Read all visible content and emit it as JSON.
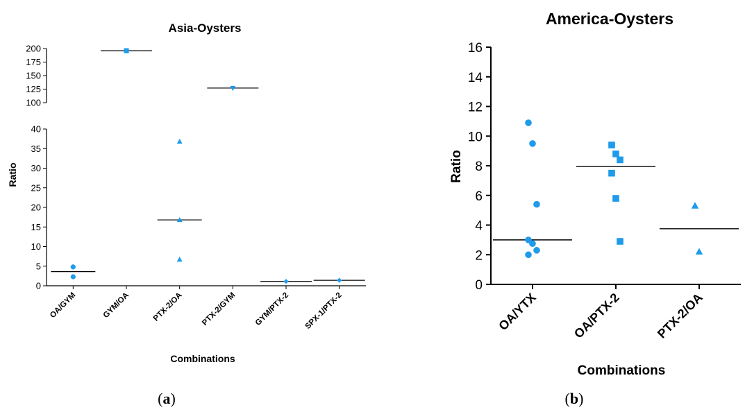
{
  "colors": {
    "marker": "#1e9bea",
    "axis": "#000000",
    "median": "#000000"
  },
  "chart_data": [
    {
      "type": "scatter",
      "title": "Asia-Oysters",
      "xlabel": "Combinations",
      "ylabel": "Ratio",
      "caption": "a",
      "categories": [
        "OA/GYM",
        "GYM/OA",
        "PTX-2/OA",
        "PTX-2/GYM",
        "GYM/PTX-2",
        "SPX-1/PTX-2"
      ],
      "broken_axis": true,
      "ylim_lower": [
        0,
        40
      ],
      "ylim_upper": [
        100,
        200
      ],
      "yticks_lower": [
        "0",
        "5",
        "10",
        "15",
        "20",
        "25",
        "30",
        "35",
        "40"
      ],
      "yticks_upper": [
        "100",
        "125",
        "150",
        "175",
        "200"
      ],
      "series": [
        {
          "category": "OA/GYM",
          "marker": "circle",
          "values": [
            4.8,
            2.3
          ],
          "median": 3.6
        },
        {
          "category": "GYM/OA",
          "marker": "square",
          "values": [
            196
          ],
          "median": 196
        },
        {
          "category": "PTX-2/OA",
          "marker": "triangle-up",
          "values": [
            36.8,
            16.8,
            6.7
          ],
          "median": 16.8
        },
        {
          "category": "PTX-2/GYM",
          "marker": "triangle-down",
          "values": [
            127
          ],
          "median": 127
        },
        {
          "category": "GYM/PTX-2",
          "marker": "diamond",
          "values": [
            1.1
          ],
          "median": 1.1
        },
        {
          "category": "SPX-1/PTX-2",
          "marker": "diamond",
          "values": [
            1.4
          ],
          "median": 1.4
        }
      ]
    },
    {
      "type": "scatter",
      "title": "America-Oysters",
      "xlabel": "Combinations",
      "ylabel": "Ratio",
      "caption": "b",
      "categories": [
        "OA/YTX",
        "OA/PTX-2",
        "PTX-2/OA"
      ],
      "ylim": [
        0,
        16
      ],
      "yticks": [
        "0",
        "2",
        "4",
        "6",
        "8",
        "10",
        "12",
        "14",
        "16"
      ],
      "series": [
        {
          "category": "OA/YTX",
          "marker": "circle",
          "values": [
            10.9,
            9.5,
            5.4,
            3.0,
            2.75,
            2.3,
            2.0
          ],
          "median": 3.0
        },
        {
          "category": "OA/PTX-2",
          "marker": "square",
          "values": [
            9.4,
            8.8,
            8.4,
            7.5,
            5.8,
            2.9
          ],
          "median": 7.95
        },
        {
          "category": "PTX-2/OA",
          "marker": "triangle-up",
          "values": [
            5.3,
            2.2
          ],
          "median": 3.75
        }
      ]
    }
  ]
}
